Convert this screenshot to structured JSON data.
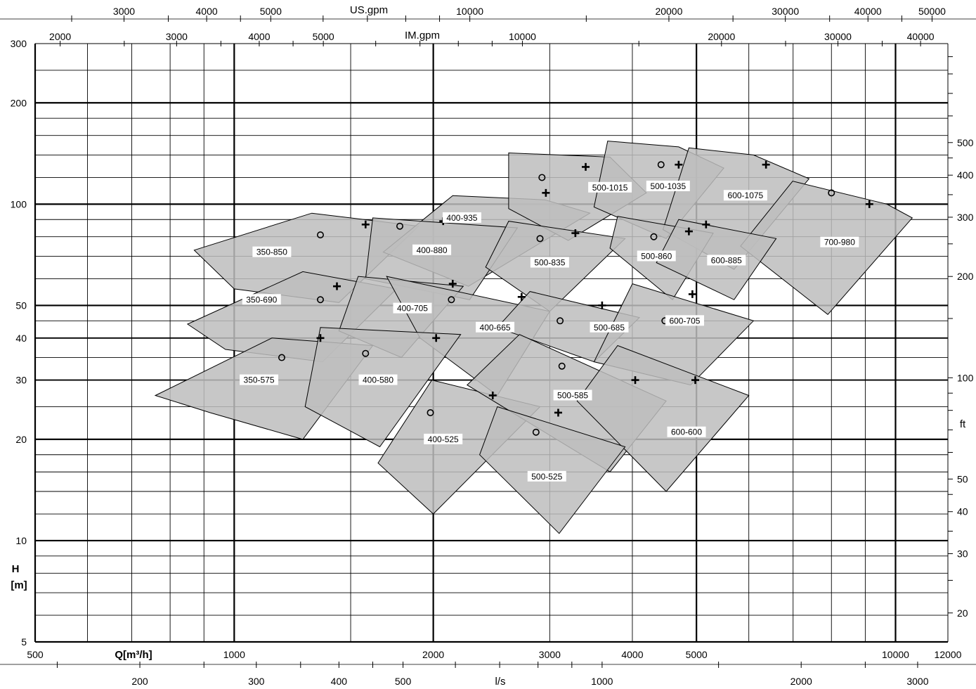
{
  "chart_data": {
    "type": "scatter",
    "title": "",
    "x_scale": "log",
    "y_scale": "log",
    "xlabel": "Q[m³/h]",
    "ylabel": "H [m]",
    "xlim": [
      500,
      12000
    ],
    "ylim": [
      5,
      300
    ],
    "grid": true,
    "x_ticks": [
      500,
      1000,
      2000,
      3000,
      4000,
      5000,
      10000,
      12000
    ],
    "y_ticks": [
      5,
      10,
      20,
      30,
      40,
      50,
      100,
      200,
      300
    ],
    "secondary_axes": {
      "us_gpm": {
        "label": "US.gpm",
        "ticks": [
          3000,
          4000,
          5000,
          10000,
          20000,
          30000,
          40000,
          50000
        ]
      },
      "im_gpm": {
        "label": "IM.gpm",
        "ticks": [
          2000,
          3000,
          4000,
          5000,
          10000,
          20000,
          30000,
          40000
        ]
      },
      "ls": {
        "label": "l/s",
        "ticks": [
          200,
          300,
          400,
          500,
          1000,
          2000,
          3000
        ]
      },
      "ft": {
        "label": "ft",
        "ticks": [
          20,
          30,
          40,
          50,
          100,
          200,
          300,
          400,
          500
        ]
      }
    },
    "y_label_line1": "H",
    "y_label_line2": "[m]",
    "pumps": [
      {
        "name": "350-850",
        "label_at": [
          1140,
          72
        ],
        "outline": [
          [
            870,
            73
          ],
          [
            1310,
            94
          ],
          [
            1900,
            86
          ],
          [
            1440,
            51
          ],
          [
            1000,
            56
          ]
        ]
      },
      {
        "name": "350-690",
        "label_at": [
          1100,
          52
        ],
        "outline": [
          [
            850,
            44
          ],
          [
            1270,
            63
          ],
          [
            1760,
            56
          ],
          [
            1360,
            34
          ],
          [
            970,
            37
          ]
        ]
      },
      {
        "name": "350-575",
        "label_at": [
          1090,
          30
        ],
        "outline": [
          [
            760,
            27
          ],
          [
            1140,
            40
          ],
          [
            1620,
            38
          ],
          [
            1270,
            20
          ],
          [
            920,
            24
          ]
        ]
      },
      {
        "name": "400-935",
        "label_at": [
          2210,
          91
        ],
        "outline": [
          [
            1680,
            72
          ],
          [
            2140,
            106
          ],
          [
            2950,
            103
          ],
          [
            3450,
            94
          ],
          [
            2260,
            57
          ]
        ]
      },
      {
        "name": "400-880",
        "label_at": [
          1990,
          73
        ],
        "outline": [
          [
            1580,
            60
          ],
          [
            1620,
            91
          ],
          [
            2680,
            85
          ],
          [
            2270,
            52
          ]
        ]
      },
      {
        "name": "400-705",
        "label_at": [
          1860,
          49
        ],
        "outline": [
          [
            1440,
            42
          ],
          [
            1540,
            61
          ],
          [
            2220,
            57
          ],
          [
            1790,
            35
          ]
        ]
      },
      {
        "name": "400-665",
        "label_at": [
          2480,
          43
        ],
        "outline": [
          [
            1910,
            40
          ],
          [
            1700,
            61
          ],
          [
            3000,
            48
          ],
          [
            2500,
            27
          ]
        ]
      },
      {
        "name": "400-580",
        "label_at": [
          1650,
          30
        ],
        "outline": [
          [
            1350,
            43
          ],
          [
            2200,
            41
          ],
          [
            1660,
            19
          ],
          [
            1280,
            25
          ]
        ]
      },
      {
        "name": "400-525",
        "label_at": [
          2070,
          20
        ],
        "outline": [
          [
            1650,
            17
          ],
          [
            1990,
            30
          ],
          [
            2900,
            25
          ],
          [
            2000,
            12
          ]
        ]
      },
      {
        "name": "500-1015",
        "label_at": [
          3700,
          112
        ],
        "outline": [
          [
            2600,
            97
          ],
          [
            2600,
            142
          ],
          [
            3700,
            138
          ],
          [
            4200,
            108
          ],
          [
            3200,
            78
          ]
        ]
      },
      {
        "name": "500-1035",
        "label_at": [
          4530,
          113
        ],
        "outline": [
          [
            3500,
            98
          ],
          [
            3670,
            154
          ],
          [
            4700,
            148
          ],
          [
            5500,
            128
          ],
          [
            4500,
            79
          ]
        ]
      },
      {
        "name": "600-1075",
        "label_at": [
          5930,
          106
        ],
        "outline": [
          [
            4450,
            84
          ],
          [
            4870,
            147
          ],
          [
            6100,
            140
          ],
          [
            7400,
            119
          ],
          [
            5700,
            64
          ]
        ]
      },
      {
        "name": "700-980",
        "label_at": [
          8230,
          77
        ],
        "outline": [
          [
            5830,
            75
          ],
          [
            6990,
            117
          ],
          [
            9700,
            100
          ],
          [
            10600,
            91
          ],
          [
            7900,
            47
          ]
        ]
      },
      {
        "name": "500-835",
        "label_at": [
          3000,
          67
        ],
        "outline": [
          [
            2400,
            65
          ],
          [
            2600,
            89
          ],
          [
            3900,
            79
          ],
          [
            3000,
            48
          ]
        ]
      },
      {
        "name": "500-860",
        "label_at": [
          4350,
          70
        ],
        "outline": [
          [
            3700,
            74
          ],
          [
            3800,
            92
          ],
          [
            5300,
            82
          ],
          [
            4600,
            52
          ]
        ]
      },
      {
        "name": "600-885",
        "label_at": [
          5550,
          68
        ],
        "outline": [
          [
            4350,
            67
          ],
          [
            4700,
            90
          ],
          [
            6600,
            79
          ],
          [
            5700,
            52
          ]
        ]
      },
      {
        "name": "500-685",
        "label_at": [
          3690,
          43
        ],
        "outline": [
          [
            2500,
            43
          ],
          [
            2800,
            55
          ],
          [
            4100,
            46
          ],
          [
            3500,
            34
          ]
        ]
      },
      {
        "name": "600-705",
        "label_at": [
          4800,
          45
        ],
        "outline": [
          [
            3500,
            34
          ],
          [
            4000,
            58
          ],
          [
            6100,
            45
          ],
          [
            4900,
            29
          ]
        ]
      },
      {
        "name": "500-585",
        "label_at": [
          3250,
          27
        ],
        "outline": [
          [
            2250,
            29
          ],
          [
            2700,
            41
          ],
          [
            4500,
            26
          ],
          [
            3700,
            16
          ]
        ]
      },
      {
        "name": "600-600",
        "label_at": [
          4830,
          21
        ],
        "outline": [
          [
            3300,
            26
          ],
          [
            3800,
            38
          ],
          [
            6000,
            27
          ],
          [
            4500,
            14
          ]
        ]
      },
      {
        "name": "500-525",
        "label_at": [
          2970,
          15.5
        ],
        "outline": [
          [
            2350,
            18
          ],
          [
            2500,
            25
          ],
          [
            3900,
            19
          ],
          [
            3100,
            10.5
          ]
        ]
      }
    ],
    "bep_plus": [
      [
        1350,
        40
      ],
      [
        1430,
        57
      ],
      [
        1580,
        87
      ],
      [
        2020,
        40
      ],
      [
        2070,
        89
      ],
      [
        2140,
        58
      ],
      [
        2460,
        27
      ],
      [
        2720,
        53
      ],
      [
        2960,
        108
      ],
      [
        3090,
        24
      ],
      [
        3280,
        82
      ],
      [
        3400,
        129
      ],
      [
        3600,
        50
      ],
      [
        4040,
        30
      ],
      [
        4700,
        131
      ],
      [
        4870,
        83
      ],
      [
        4930,
        54
      ],
      [
        4980,
        30
      ],
      [
        5170,
        87
      ],
      [
        6370,
        131
      ],
      [
        9130,
        100
      ]
    ],
    "bep_circle": [
      [
        1180,
        35
      ],
      [
        1350,
        52
      ],
      [
        1350,
        81
      ],
      [
        1580,
        36
      ],
      [
        1780,
        86
      ],
      [
        1980,
        24
      ],
      [
        2130,
        52
      ],
      [
        2860,
        21
      ],
      [
        2900,
        79
      ],
      [
        2920,
        120
      ],
      [
        3110,
        45
      ],
      [
        3130,
        33
      ],
      [
        4310,
        80
      ],
      [
        4420,
        131
      ],
      [
        4480,
        45
      ],
      [
        8000,
        108
      ]
    ]
  }
}
